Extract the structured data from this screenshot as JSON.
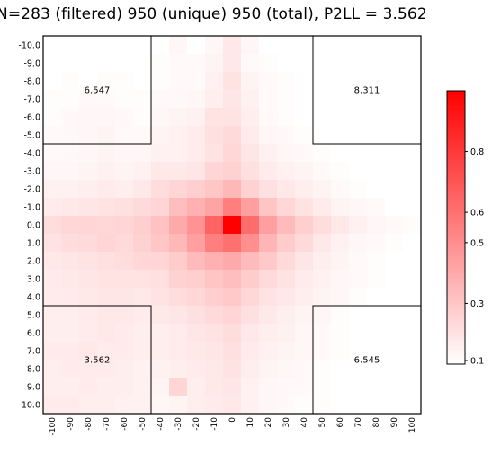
{
  "chart_data": {
    "type": "heatmap",
    "title": "N=283 (filtered) 950 (unique) 950 (total), P2LL = 3.562",
    "x_ticks": [
      "-100",
      "-90",
      "-80",
      "-70",
      "-60",
      "-50",
      "-40",
      "-30",
      "-20",
      "-10",
      "0",
      "10",
      "20",
      "30",
      "40",
      "50",
      "60",
      "70",
      "80",
      "90",
      "100"
    ],
    "y_ticks": [
      "-10.0",
      "-9.0",
      "-8.0",
      "-7.0",
      "-6.0",
      "-5.0",
      "-4.0",
      "-3.0",
      "-2.0",
      "-1.0",
      "0.0",
      "1.0",
      "2.0",
      "3.0",
      "4.0",
      "5.0",
      "6.0",
      "7.0",
      "8.0",
      "9.0",
      "10.0"
    ],
    "values": [
      [
        0.08,
        0.09,
        0.08,
        0.09,
        0.1,
        0.09,
        0.1,
        0.13,
        0.1,
        0.13,
        0.18,
        0.13,
        0.1,
        0.1,
        0.09,
        0.08,
        0.08,
        0.07,
        0.07,
        0.08,
        0.08
      ],
      [
        0.09,
        0.1,
        0.09,
        0.1,
        0.1,
        0.1,
        0.11,
        0.12,
        0.12,
        0.14,
        0.18,
        0.12,
        0.11,
        0.1,
        0.09,
        0.08,
        0.08,
        0.07,
        0.09,
        0.08,
        0.07
      ],
      [
        0.1,
        0.11,
        0.1,
        0.11,
        0.11,
        0.1,
        0.11,
        0.12,
        0.12,
        0.15,
        0.2,
        0.14,
        0.12,
        0.11,
        0.09,
        0.08,
        0.07,
        0.07,
        0.07,
        0.08,
        0.07
      ],
      [
        0.11,
        0.11,
        0.12,
        0.12,
        0.11,
        0.11,
        0.12,
        0.12,
        0.13,
        0.16,
        0.19,
        0.15,
        0.12,
        0.11,
        0.1,
        0.08,
        0.08,
        0.08,
        0.08,
        0.07,
        0.07
      ],
      [
        0.11,
        0.12,
        0.13,
        0.13,
        0.12,
        0.11,
        0.13,
        0.14,
        0.15,
        0.2,
        0.2,
        0.16,
        0.12,
        0.11,
        0.1,
        0.09,
        0.08,
        0.08,
        0.07,
        0.08,
        0.07
      ],
      [
        0.12,
        0.12,
        0.13,
        0.14,
        0.12,
        0.12,
        0.14,
        0.15,
        0.17,
        0.21,
        0.23,
        0.17,
        0.13,
        0.12,
        0.11,
        0.1,
        0.09,
        0.08,
        0.08,
        0.08,
        0.07
      ],
      [
        0.12,
        0.12,
        0.13,
        0.14,
        0.13,
        0.13,
        0.15,
        0.15,
        0.17,
        0.2,
        0.24,
        0.19,
        0.15,
        0.13,
        0.12,
        0.11,
        0.1,
        0.09,
        0.08,
        0.08,
        0.07
      ],
      [
        0.13,
        0.13,
        0.14,
        0.15,
        0.14,
        0.15,
        0.18,
        0.18,
        0.19,
        0.25,
        0.26,
        0.21,
        0.17,
        0.15,
        0.14,
        0.12,
        0.11,
        0.1,
        0.09,
        0.08,
        0.08
      ],
      [
        0.15,
        0.15,
        0.16,
        0.17,
        0.16,
        0.18,
        0.22,
        0.25,
        0.27,
        0.3,
        0.35,
        0.26,
        0.21,
        0.18,
        0.16,
        0.14,
        0.12,
        0.11,
        0.1,
        0.09,
        0.09
      ],
      [
        0.17,
        0.18,
        0.19,
        0.2,
        0.21,
        0.23,
        0.25,
        0.33,
        0.38,
        0.42,
        0.55,
        0.44,
        0.31,
        0.24,
        0.2,
        0.17,
        0.14,
        0.13,
        0.12,
        0.1,
        0.1
      ],
      [
        0.22,
        0.24,
        0.25,
        0.24,
        0.25,
        0.27,
        0.32,
        0.4,
        0.48,
        0.65,
        1.0,
        0.62,
        0.44,
        0.34,
        0.27,
        0.22,
        0.18,
        0.15,
        0.13,
        0.12,
        0.11
      ],
      [
        0.2,
        0.22,
        0.23,
        0.25,
        0.23,
        0.26,
        0.3,
        0.35,
        0.44,
        0.55,
        0.6,
        0.5,
        0.36,
        0.28,
        0.23,
        0.18,
        0.15,
        0.13,
        0.12,
        0.11,
        0.1
      ],
      [
        0.18,
        0.19,
        0.2,
        0.21,
        0.22,
        0.24,
        0.25,
        0.28,
        0.34,
        0.38,
        0.4,
        0.34,
        0.29,
        0.23,
        0.19,
        0.16,
        0.14,
        0.12,
        0.11,
        0.1,
        0.09
      ],
      [
        0.17,
        0.18,
        0.19,
        0.2,
        0.2,
        0.2,
        0.21,
        0.26,
        0.27,
        0.31,
        0.33,
        0.28,
        0.23,
        0.2,
        0.17,
        0.15,
        0.13,
        0.12,
        0.11,
        0.1,
        0.09
      ],
      [
        0.17,
        0.17,
        0.18,
        0.19,
        0.19,
        0.18,
        0.2,
        0.22,
        0.24,
        0.27,
        0.29,
        0.24,
        0.2,
        0.18,
        0.16,
        0.14,
        0.13,
        0.11,
        0.1,
        0.1,
        0.09
      ],
      [
        0.16,
        0.16,
        0.17,
        0.18,
        0.18,
        0.17,
        0.18,
        0.19,
        0.21,
        0.23,
        0.25,
        0.21,
        0.18,
        0.16,
        0.14,
        0.13,
        0.11,
        0.1,
        0.1,
        0.09,
        0.09
      ],
      [
        0.16,
        0.16,
        0.17,
        0.18,
        0.17,
        0.16,
        0.16,
        0.17,
        0.19,
        0.2,
        0.22,
        0.18,
        0.16,
        0.15,
        0.13,
        0.12,
        0.11,
        0.1,
        0.09,
        0.09,
        0.08
      ],
      [
        0.17,
        0.17,
        0.18,
        0.17,
        0.17,
        0.16,
        0.16,
        0.17,
        0.18,
        0.19,
        0.21,
        0.17,
        0.15,
        0.14,
        0.13,
        0.12,
        0.11,
        0.1,
        0.09,
        0.09,
        0.08
      ],
      [
        0.16,
        0.17,
        0.17,
        0.17,
        0.16,
        0.15,
        0.15,
        0.16,
        0.17,
        0.18,
        0.2,
        0.16,
        0.14,
        0.13,
        0.12,
        0.11,
        0.1,
        0.1,
        0.09,
        0.09,
        0.08
      ],
      [
        0.16,
        0.16,
        0.17,
        0.16,
        0.16,
        0.15,
        0.14,
        0.25,
        0.16,
        0.18,
        0.19,
        0.15,
        0.13,
        0.12,
        0.12,
        0.11,
        0.1,
        0.09,
        0.09,
        0.08,
        0.08
      ],
      [
        0.17,
        0.17,
        0.16,
        0.16,
        0.15,
        0.15,
        0.13,
        0.14,
        0.16,
        0.17,
        0.18,
        0.15,
        0.13,
        0.12,
        0.11,
        0.11,
        0.1,
        0.09,
        0.09,
        0.08,
        0.08
      ]
    ],
    "quadrant_values": [
      "6.547",
      "8.311",
      "3.562",
      "6.545"
    ],
    "colorbar": {
      "range": [
        0.1,
        1.0
      ],
      "ticks": [
        0.1,
        0.3,
        0.5,
        0.6,
        0.8
      ],
      "tick_labels": [
        "0.1",
        "0.3",
        "0.5",
        "0.6",
        "0.8"
      ]
    },
    "colors": {
      "low": "#ffffff",
      "high": "#ff0000"
    }
  }
}
